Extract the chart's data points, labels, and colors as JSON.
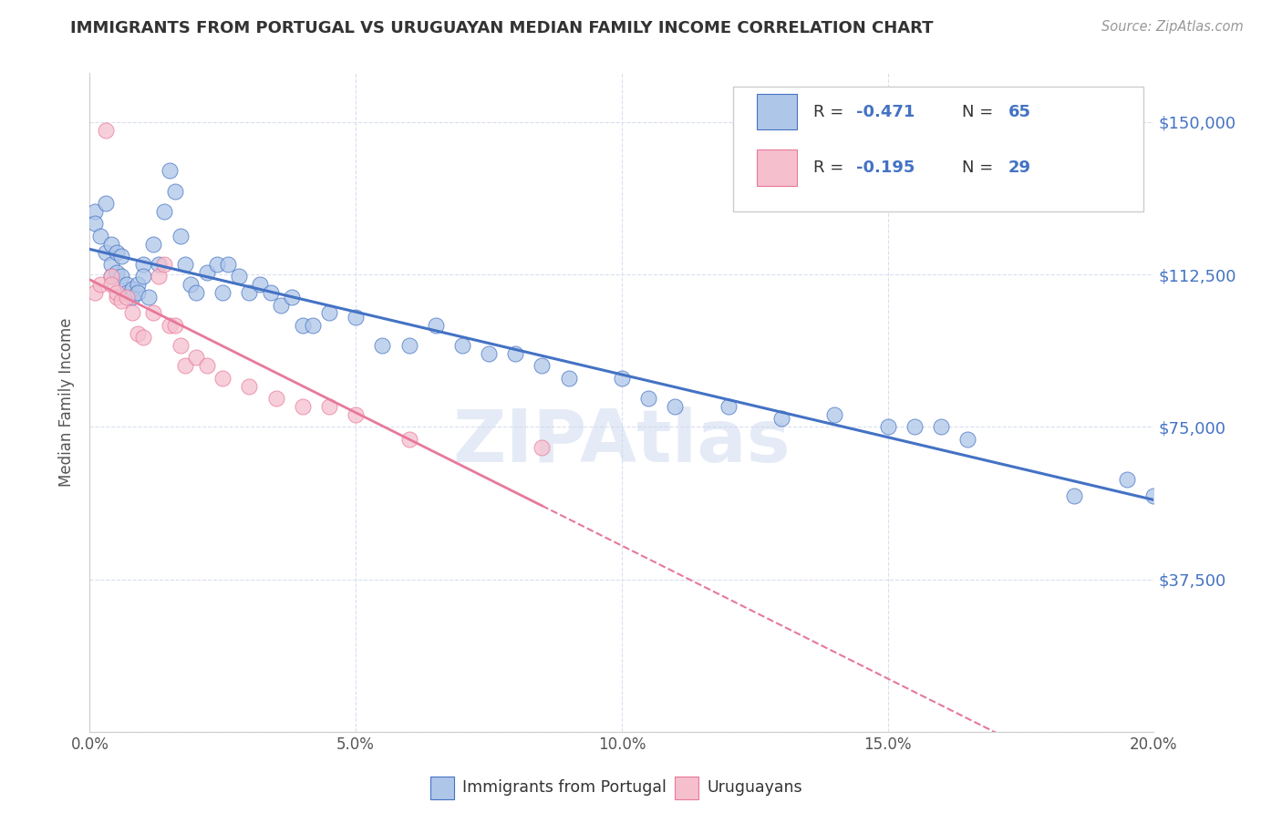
{
  "title": "IMMIGRANTS FROM PORTUGAL VS URUGUAYAN MEDIAN FAMILY INCOME CORRELATION CHART",
  "source": "Source: ZipAtlas.com",
  "ylabel": "Median Family Income",
  "y_ticks": [
    0,
    37500,
    75000,
    112500,
    150000
  ],
  "y_tick_labels": [
    "",
    "$37,500",
    "$75,000",
    "$112,500",
    "$150,000"
  ],
  "x_ticks": [
    0.0,
    0.05,
    0.1,
    0.15,
    0.2
  ],
  "x_tick_labels": [
    "0.0%",
    "5.0%",
    "10.0%",
    "15.0%",
    "20.0%"
  ],
  "x_min": 0.0,
  "x_max": 0.2,
  "y_min": 0,
  "y_max": 162000,
  "legend_r1_label": "R = ",
  "legend_r1_val": "-0.471",
  "legend_n1_label": "N = ",
  "legend_n1_val": "65",
  "legend_r2_label": "R = ",
  "legend_r2_val": "-0.195",
  "legend_n2_label": "N = ",
  "legend_n2_val": "29",
  "color_blue": "#aec6e8",
  "color_pink": "#f5bfce",
  "line_color_blue": "#4472c4",
  "line_color_pink": "#e8789a",
  "text_color_blue": "#4472c4",
  "watermark": "ZIPAtlas",
  "label1": "Immigrants from Portugal",
  "label2": "Uruguayans",
  "blue_x": [
    0.001,
    0.001,
    0.002,
    0.003,
    0.003,
    0.004,
    0.004,
    0.004,
    0.005,
    0.005,
    0.006,
    0.006,
    0.007,
    0.007,
    0.008,
    0.008,
    0.009,
    0.009,
    0.01,
    0.01,
    0.011,
    0.012,
    0.013,
    0.014,
    0.015,
    0.016,
    0.017,
    0.018,
    0.019,
    0.02,
    0.022,
    0.024,
    0.025,
    0.026,
    0.028,
    0.03,
    0.032,
    0.034,
    0.036,
    0.038,
    0.04,
    0.042,
    0.045,
    0.05,
    0.055,
    0.06,
    0.065,
    0.07,
    0.075,
    0.08,
    0.085,
    0.09,
    0.1,
    0.105,
    0.11,
    0.12,
    0.13,
    0.14,
    0.15,
    0.155,
    0.16,
    0.165,
    0.185,
    0.195,
    0.2
  ],
  "blue_y": [
    128000,
    125000,
    122000,
    130000,
    118000,
    120000,
    115000,
    112000,
    118000,
    113000,
    117000,
    112000,
    110000,
    108000,
    109000,
    107000,
    110000,
    108000,
    115000,
    112000,
    107000,
    120000,
    115000,
    128000,
    138000,
    133000,
    122000,
    115000,
    110000,
    108000,
    113000,
    115000,
    108000,
    115000,
    112000,
    108000,
    110000,
    108000,
    105000,
    107000,
    100000,
    100000,
    103000,
    102000,
    95000,
    95000,
    100000,
    95000,
    93000,
    93000,
    90000,
    87000,
    87000,
    82000,
    80000,
    80000,
    77000,
    78000,
    75000,
    75000,
    75000,
    72000,
    58000,
    62000,
    58000
  ],
  "pink_x": [
    0.001,
    0.002,
    0.003,
    0.004,
    0.004,
    0.005,
    0.005,
    0.006,
    0.007,
    0.008,
    0.009,
    0.01,
    0.012,
    0.013,
    0.014,
    0.015,
    0.016,
    0.017,
    0.018,
    0.02,
    0.022,
    0.025,
    0.03,
    0.035,
    0.04,
    0.045,
    0.05,
    0.06,
    0.085
  ],
  "pink_y": [
    108000,
    110000,
    148000,
    112000,
    110000,
    107000,
    108000,
    106000,
    107000,
    103000,
    98000,
    97000,
    103000,
    112000,
    115000,
    100000,
    100000,
    95000,
    90000,
    92000,
    90000,
    87000,
    85000,
    82000,
    80000,
    80000,
    78000,
    72000,
    70000
  ],
  "pink_line_solid_x_end": 0.1,
  "pink_line_x_end": 0.2
}
